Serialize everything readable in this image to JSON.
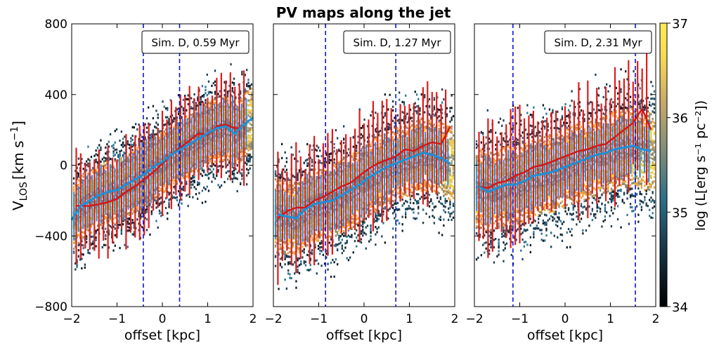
{
  "title": "PV maps along the jet",
  "chart_data": {
    "type": "heatmap",
    "ylabel_main": "V",
    "ylabel_sub": "LOS",
    "ylabel_units": "[km s",
    "ylabel_exp": "−1",
    "ylabel_close": "]",
    "xlabel": "offset [kpc]",
    "xlim": [
      -2,
      2
    ],
    "ylim": [
      -800,
      800
    ],
    "xticks": [
      "−2",
      "−1",
      "0",
      "1",
      "2"
    ],
    "yticks": [
      "−800",
      "−400",
      "0",
      "400",
      "800"
    ],
    "colorbar": {
      "label": "log (L[erg s⁻¹ pc⁻²])",
      "ticks": [
        "34",
        "35",
        "36",
        "37"
      ],
      "range": [
        34,
        37
      ],
      "stops": [
        "#000000",
        "#1a3a4f",
        "#2e6e88",
        "#7e8d78",
        "#c9a86a",
        "#f6d955",
        "#ffeb55"
      ]
    },
    "panels": [
      {
        "label": "Sim.  D, 0.59 Myr",
        "dashed_x": [
          -0.42,
          0.38
        ],
        "median_blue": [
          [
            -2.0,
            -310
          ],
          [
            -1.8,
            -230
          ],
          [
            -1.6,
            -200
          ],
          [
            -1.4,
            -170
          ],
          [
            -1.2,
            -150
          ],
          [
            -1.0,
            -140
          ],
          [
            -0.8,
            -110
          ],
          [
            -0.6,
            -80
          ],
          [
            -0.4,
            -50
          ],
          [
            -0.2,
            -10
          ],
          [
            0.0,
            20
          ],
          [
            0.2,
            60
          ],
          [
            0.4,
            90
          ],
          [
            0.6,
            120
          ],
          [
            0.8,
            150
          ],
          [
            1.0,
            180
          ],
          [
            1.2,
            210
          ],
          [
            1.4,
            220
          ],
          [
            1.6,
            180
          ],
          [
            1.8,
            230
          ],
          [
            2.0,
            270
          ]
        ],
        "median_red": [
          [
            -1.9,
            -230
          ],
          [
            -1.6,
            -230
          ],
          [
            -1.4,
            -220
          ],
          [
            -1.2,
            -210
          ],
          [
            -1.0,
            -190
          ],
          [
            -0.8,
            -150
          ],
          [
            -0.6,
            -120
          ],
          [
            -0.4,
            -80
          ],
          [
            -0.2,
            -40
          ],
          [
            0.0,
            10
          ],
          [
            0.2,
            60
          ],
          [
            0.4,
            100
          ],
          [
            0.6,
            140
          ],
          [
            0.8,
            180
          ],
          [
            1.0,
            170
          ],
          [
            1.2,
            220
          ],
          [
            1.4,
            230
          ],
          [
            1.6,
            210
          ],
          [
            1.7,
            210
          ]
        ]
      },
      {
        "label": "Sim.  D, 1.27 Myr",
        "dashed_x": [
          -0.85,
          0.7
        ],
        "median_blue": [
          [
            -1.9,
            -280
          ],
          [
            -1.7,
            -290
          ],
          [
            -1.5,
            -300
          ],
          [
            -1.3,
            -250
          ],
          [
            -1.1,
            -220
          ],
          [
            -0.9,
            -210
          ],
          [
            -0.7,
            -200
          ],
          [
            -0.5,
            -170
          ],
          [
            -0.3,
            -140
          ],
          [
            -0.1,
            -110
          ],
          [
            0.1,
            -70
          ],
          [
            0.3,
            -40
          ],
          [
            0.5,
            -10
          ],
          [
            0.7,
            10
          ],
          [
            0.9,
            30
          ],
          [
            1.1,
            50
          ],
          [
            1.3,
            70
          ],
          [
            1.5,
            60
          ],
          [
            1.7,
            40
          ],
          [
            1.9,
            10
          ]
        ],
        "median_red": [
          [
            -1.9,
            -300
          ],
          [
            -1.7,
            -260
          ],
          [
            -1.5,
            -240
          ],
          [
            -1.3,
            -240
          ],
          [
            -1.1,
            -200
          ],
          [
            -0.9,
            -180
          ],
          [
            -0.7,
            -150
          ],
          [
            -0.5,
            -120
          ],
          [
            -0.3,
            -100
          ],
          [
            -0.1,
            -60
          ],
          [
            0.1,
            -20
          ],
          [
            0.3,
            10
          ],
          [
            0.5,
            30
          ],
          [
            0.7,
            50
          ],
          [
            0.9,
            90
          ],
          [
            1.1,
            80
          ],
          [
            1.3,
            110
          ],
          [
            1.5,
            130
          ],
          [
            1.7,
            120
          ],
          [
            1.9,
            220
          ]
        ]
      },
      {
        "label": "Sim.  D, 2.31 Myr",
        "dashed_x": [
          -1.15,
          1.55
        ],
        "median_blue": [
          [
            -1.9,
            -120
          ],
          [
            -1.7,
            -150
          ],
          [
            -1.5,
            -130
          ],
          [
            -1.3,
            -110
          ],
          [
            -1.1,
            -110
          ],
          [
            -0.9,
            -90
          ],
          [
            -0.7,
            -60
          ],
          [
            -0.5,
            -50
          ],
          [
            -0.3,
            -40
          ],
          [
            -0.1,
            -20
          ],
          [
            0.1,
            0
          ],
          [
            0.3,
            20
          ],
          [
            0.5,
            40
          ],
          [
            0.7,
            60
          ],
          [
            0.9,
            70
          ],
          [
            1.1,
            90
          ],
          [
            1.3,
            100
          ],
          [
            1.5,
            110
          ],
          [
            1.7,
            90
          ],
          [
            1.9,
            80
          ]
        ],
        "median_red": [
          [
            -1.9,
            -120
          ],
          [
            -1.7,
            -130
          ],
          [
            -1.5,
            -100
          ],
          [
            -1.3,
            -90
          ],
          [
            -1.1,
            -60
          ],
          [
            -0.9,
            -40
          ],
          [
            -0.7,
            -10
          ],
          [
            -0.5,
            0
          ],
          [
            -0.3,
            20
          ],
          [
            -0.1,
            40
          ],
          [
            0.1,
            60
          ],
          [
            0.3,
            80
          ],
          [
            0.5,
            90
          ],
          [
            0.7,
            110
          ],
          [
            0.9,
            120
          ],
          [
            1.1,
            160
          ],
          [
            1.3,
            200
          ],
          [
            1.5,
            240
          ],
          [
            1.7,
            320
          ],
          [
            1.9,
            200
          ]
        ]
      }
    ]
  }
}
